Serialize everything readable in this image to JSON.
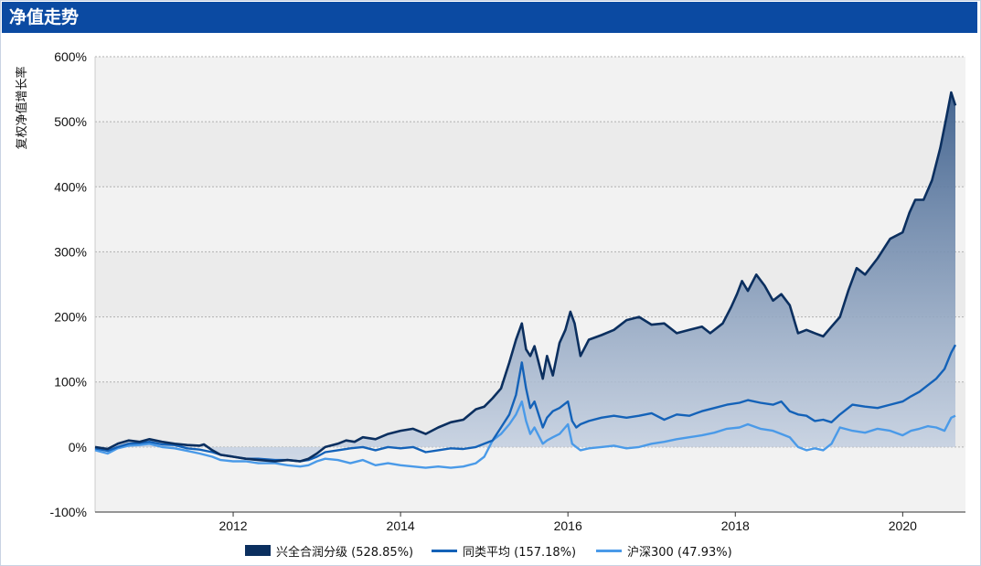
{
  "header": {
    "title": "净值走势"
  },
  "colors": {
    "header_bg": "#0b4aa2",
    "fund": "#0b2f5f",
    "peer": "#1462b8",
    "index": "#4a9ae8",
    "plot_bg": "#f2f2f2"
  },
  "chart_data": {
    "type": "line",
    "ylabel": "复权净值增长率",
    "xlabel": "",
    "ylim": [
      -100,
      600
    ],
    "y_unit": "%",
    "y_ticks": [
      "600%",
      "500%",
      "400%",
      "300%",
      "200%",
      "100%",
      "0%",
      "-100%"
    ],
    "x_range": [
      2010.35,
      2020.75
    ],
    "x_ticks": [
      "2012",
      "2014",
      "2016",
      "2018",
      "2020"
    ],
    "grid": true,
    "legend_position": "bottom",
    "series": [
      {
        "name": "兴全合润分级",
        "legend": "兴全合润分级 (528.85%)",
        "style": "area",
        "x": [
          2010.35,
          2010.5,
          2010.62,
          2010.75,
          2010.88,
          2011.0,
          2011.15,
          2011.3,
          2011.45,
          2011.6,
          2011.65,
          2011.75,
          2011.85,
          2012.0,
          2012.15,
          2012.3,
          2012.5,
          2012.65,
          2012.8,
          2012.9,
          2013.0,
          2013.1,
          2013.25,
          2013.35,
          2013.45,
          2013.55,
          2013.7,
          2013.85,
          2014.0,
          2014.15,
          2014.3,
          2014.45,
          2014.6,
          2014.75,
          2014.9,
          2015.0,
          2015.1,
          2015.2,
          2015.3,
          2015.38,
          2015.45,
          2015.5,
          2015.55,
          2015.6,
          2015.7,
          2015.75,
          2015.82,
          2015.9,
          2015.97,
          2016.03,
          2016.08,
          2016.15,
          2016.25,
          2016.4,
          2016.55,
          2016.7,
          2016.85,
          2017.0,
          2017.15,
          2017.3,
          2017.45,
          2017.6,
          2017.7,
          2017.85,
          2017.95,
          2018.02,
          2018.08,
          2018.15,
          2018.25,
          2018.35,
          2018.45,
          2018.55,
          2018.65,
          2018.75,
          2018.85,
          2018.95,
          2019.05,
          2019.15,
          2019.25,
          2019.35,
          2019.45,
          2019.55,
          2019.7,
          2019.85,
          2020.0,
          2020.08,
          2020.15,
          2020.25,
          2020.35,
          2020.45,
          2020.52,
          2020.58,
          2020.63
        ],
        "y": [
          0,
          -3,
          5,
          10,
          8,
          12,
          8,
          5,
          3,
          2,
          4,
          -5,
          -12,
          -15,
          -18,
          -20,
          -22,
          -20,
          -22,
          -18,
          -10,
          0,
          5,
          10,
          8,
          15,
          12,
          20,
          25,
          28,
          20,
          30,
          38,
          42,
          58,
          62,
          75,
          90,
          130,
          165,
          190,
          150,
          140,
          155,
          105,
          140,
          110,
          160,
          180,
          208,
          190,
          140,
          165,
          172,
          180,
          195,
          200,
          188,
          190,
          175,
          180,
          185,
          175,
          190,
          215,
          235,
          255,
          240,
          265,
          248,
          225,
          235,
          218,
          175,
          180,
          175,
          170,
          185,
          200,
          240,
          275,
          265,
          290,
          320,
          330,
          360,
          380,
          380,
          410,
          460,
          505,
          545,
          525
        ]
      },
      {
        "name": "同类平均",
        "legend": "同类平均 (157.18%)",
        "style": "line",
        "x": [
          2010.35,
          2010.5,
          2010.62,
          2010.75,
          2010.88,
          2011.0,
          2011.15,
          2011.3,
          2011.45,
          2011.6,
          2011.75,
          2011.85,
          2012.0,
          2012.15,
          2012.3,
          2012.5,
          2012.65,
          2012.8,
          2012.9,
          2013.0,
          2013.1,
          2013.25,
          2013.4,
          2013.55,
          2013.7,
          2013.85,
          2014.0,
          2014.15,
          2014.3,
          2014.45,
          2014.6,
          2014.75,
          2014.9,
          2015.0,
          2015.1,
          2015.2,
          2015.3,
          2015.38,
          2015.45,
          2015.5,
          2015.55,
          2015.6,
          2015.7,
          2015.75,
          2015.82,
          2015.9,
          2016.0,
          2016.05,
          2016.1,
          2016.15,
          2016.25,
          2016.4,
          2016.55,
          2016.7,
          2016.85,
          2017.0,
          2017.15,
          2017.3,
          2017.45,
          2017.6,
          2017.75,
          2017.9,
          2018.05,
          2018.15,
          2018.3,
          2018.45,
          2018.55,
          2018.65,
          2018.75,
          2018.85,
          2018.95,
          2019.05,
          2019.15,
          2019.25,
          2019.4,
          2019.55,
          2019.7,
          2019.85,
          2020.0,
          2020.1,
          2020.2,
          2020.3,
          2020.4,
          2020.5,
          2020.58,
          2020.63
        ],
        "y": [
          -2,
          -6,
          0,
          5,
          6,
          8,
          4,
          3,
          -2,
          -4,
          -8,
          -12,
          -15,
          -18,
          -18,
          -20,
          -20,
          -22,
          -20,
          -15,
          -8,
          -5,
          -2,
          0,
          -5,
          0,
          -2,
          0,
          -8,
          -5,
          -2,
          -3,
          0,
          5,
          10,
          30,
          50,
          80,
          130,
          90,
          60,
          70,
          30,
          45,
          55,
          60,
          70,
          40,
          30,
          35,
          40,
          45,
          48,
          45,
          48,
          52,
          42,
          50,
          48,
          55,
          60,
          65,
          68,
          72,
          68,
          65,
          70,
          55,
          50,
          48,
          40,
          42,
          38,
          50,
          65,
          62,
          60,
          65,
          70,
          78,
          85,
          95,
          105,
          120,
          145,
          157
        ]
      },
      {
        "name": "沪深300",
        "legend": "沪深300 (47.93%)",
        "style": "line",
        "x": [
          2010.35,
          2010.5,
          2010.62,
          2010.75,
          2010.88,
          2011.0,
          2011.15,
          2011.3,
          2011.45,
          2011.6,
          2011.75,
          2011.85,
          2012.0,
          2012.15,
          2012.3,
          2012.5,
          2012.65,
          2012.8,
          2012.9,
          2013.0,
          2013.1,
          2013.25,
          2013.4,
          2013.55,
          2013.7,
          2013.85,
          2014.0,
          2014.15,
          2014.3,
          2014.45,
          2014.6,
          2014.75,
          2014.9,
          2015.0,
          2015.1,
          2015.2,
          2015.3,
          2015.38,
          2015.45,
          2015.5,
          2015.55,
          2015.6,
          2015.7,
          2015.75,
          2015.82,
          2015.9,
          2016.0,
          2016.05,
          2016.1,
          2016.15,
          2016.25,
          2016.4,
          2016.55,
          2016.7,
          2016.85,
          2017.0,
          2017.15,
          2017.3,
          2017.45,
          2017.6,
          2017.75,
          2017.9,
          2018.05,
          2018.15,
          2018.3,
          2018.45,
          2018.55,
          2018.65,
          2018.75,
          2018.85,
          2018.95,
          2019.05,
          2019.15,
          2019.25,
          2019.4,
          2019.55,
          2019.7,
          2019.85,
          2020.0,
          2020.1,
          2020.2,
          2020.3,
          2020.4,
          2020.5,
          2020.58,
          2020.63
        ],
        "y": [
          -5,
          -10,
          -2,
          2,
          3,
          5,
          0,
          -2,
          -6,
          -10,
          -15,
          -20,
          -22,
          -22,
          -25,
          -25,
          -28,
          -30,
          -28,
          -22,
          -18,
          -20,
          -25,
          -20,
          -28,
          -25,
          -28,
          -30,
          -32,
          -30,
          -32,
          -30,
          -25,
          -15,
          10,
          20,
          35,
          50,
          70,
          40,
          20,
          30,
          5,
          10,
          15,
          20,
          35,
          5,
          0,
          -5,
          -2,
          0,
          2,
          -2,
          0,
          5,
          8,
          12,
          15,
          18,
          22,
          28,
          30,
          35,
          28,
          25,
          20,
          15,
          0,
          -5,
          -2,
          -5,
          5,
          30,
          25,
          22,
          28,
          25,
          18,
          25,
          28,
          32,
          30,
          25,
          45,
          48
        ]
      }
    ]
  }
}
